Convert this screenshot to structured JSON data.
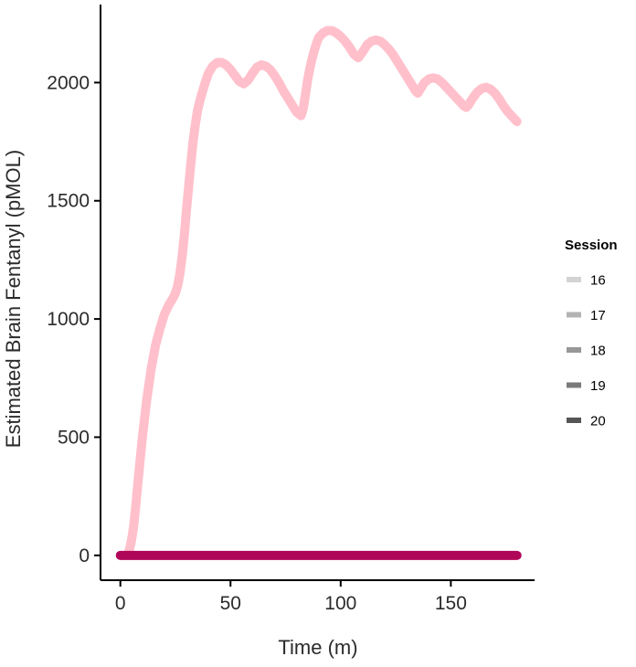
{
  "chart_data": {
    "type": "line",
    "title": "",
    "xlabel": "Time (m)",
    "ylabel": "Estimated Brain Fentanyl (pMOL)",
    "xlim": [
      -9,
      188
    ],
    "ylim": [
      -105,
      2330
    ],
    "x_ticks": [
      0,
      50,
      100,
      150
    ],
    "y_ticks": [
      0,
      500,
      1000,
      1500,
      2000
    ],
    "grid": false,
    "legend": {
      "title": "Session",
      "position": "right",
      "entries": [
        {
          "label": "16",
          "color": "#d3d3d3"
        },
        {
          "label": "17",
          "color": "#b3b3b3"
        },
        {
          "label": "18",
          "color": "#979797"
        },
        {
          "label": "19",
          "color": "#7a7a7a"
        },
        {
          "label": "20",
          "color": "#555555"
        }
      ]
    },
    "series": [
      {
        "color": "#ffc0cb",
        "x": [
          3,
          4,
          5,
          6,
          7,
          8,
          10,
          12,
          14,
          16,
          18,
          20,
          22,
          24,
          25,
          26,
          27,
          28,
          29,
          30,
          31,
          32,
          33,
          34,
          35,
          36,
          38,
          40,
          42,
          44,
          46,
          48,
          50,
          52,
          54,
          56,
          58,
          60,
          62,
          64,
          66,
          68,
          70,
          72,
          74,
          76,
          78,
          80,
          82,
          83,
          84,
          85,
          86,
          87,
          88,
          89,
          90,
          92,
          94,
          96,
          98,
          100,
          102,
          104,
          106,
          108,
          110,
          112,
          114,
          116,
          118,
          120,
          122,
          124,
          126,
          128,
          130,
          132,
          134,
          135,
          136,
          138,
          140,
          142,
          144,
          146,
          148,
          150,
          152,
          154,
          156,
          157,
          158,
          160,
          162,
          164,
          166,
          168,
          170,
          172,
          174,
          176,
          178,
          180
        ],
        "y": [
          0,
          20,
          60,
          120,
          210,
          310,
          500,
          660,
          790,
          890,
          960,
          1020,
          1060,
          1090,
          1110,
          1140,
          1190,
          1260,
          1350,
          1460,
          1560,
          1660,
          1750,
          1820,
          1880,
          1920,
          1985,
          2040,
          2070,
          2085,
          2085,
          2075,
          2055,
          2030,
          2005,
          1995,
          2010,
          2040,
          2065,
          2075,
          2070,
          2055,
          2030,
          2000,
          1965,
          1935,
          1905,
          1875,
          1860,
          1890,
          1950,
          2010,
          2060,
          2100,
          2135,
          2165,
          2190,
          2210,
          2220,
          2220,
          2210,
          2195,
          2175,
          2150,
          2120,
          2105,
          2130,
          2160,
          2175,
          2180,
          2175,
          2160,
          2140,
          2115,
          2085,
          2055,
          2025,
          1995,
          1965,
          1955,
          1970,
          2000,
          2015,
          2020,
          2015,
          2000,
          1980,
          1960,
          1940,
          1920,
          1900,
          1895,
          1905,
          1935,
          1960,
          1975,
          1980,
          1972,
          1955,
          1930,
          1900,
          1875,
          1855,
          1835
        ]
      },
      {
        "color": "#b0065a",
        "x": [
          0,
          180
        ],
        "y": [
          0,
          0
        ]
      }
    ]
  }
}
